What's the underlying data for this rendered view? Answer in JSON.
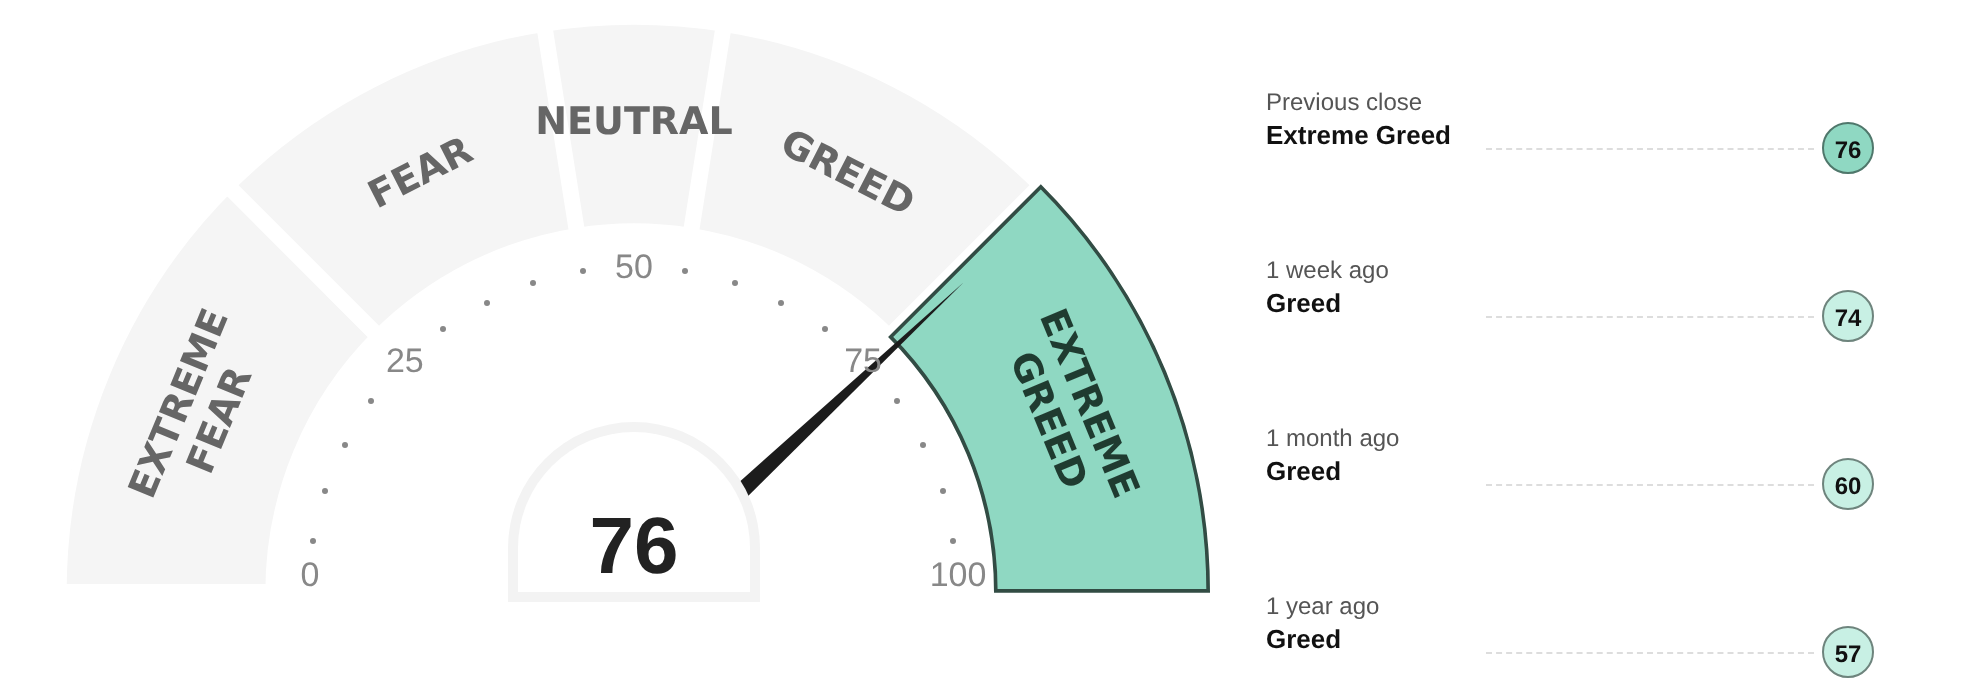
{
  "chart_data": [
    {
      "type": "donut",
      "categories": [
        "EXTREME FEAR",
        "FEAR",
        "NEUTRAL",
        "GREED",
        "EXTREME GREED"
      ],
      "values": [
        25,
        20,
        10,
        20,
        25
      ],
      "colors": [
        "#f5f5f5",
        "#f5f5f5",
        "#f5f5f5",
        "#f5f5f5",
        "#8fd8c2"
      ],
      "needle": "EXTREME GREED",
      "annotations": [
        "76",
        "0",
        "25",
        "50",
        "75",
        "100"
      ]
    },
    {
      "type": "other",
      "categories": [
        "Previous close",
        "1 week ago",
        "1 month ago",
        "1 year ago"
      ],
      "values": [
        76,
        74,
        60,
        57
      ],
      "data_labels": true,
      "colors": [
        "#8fd8c2",
        "#c8f0e4",
        "#c8f0e4",
        "#c8f0e4"
      ],
      "annotations": [
        "Extreme Greed",
        "Greed",
        "Greed",
        "Greed"
      ]
    }
  ]
}
